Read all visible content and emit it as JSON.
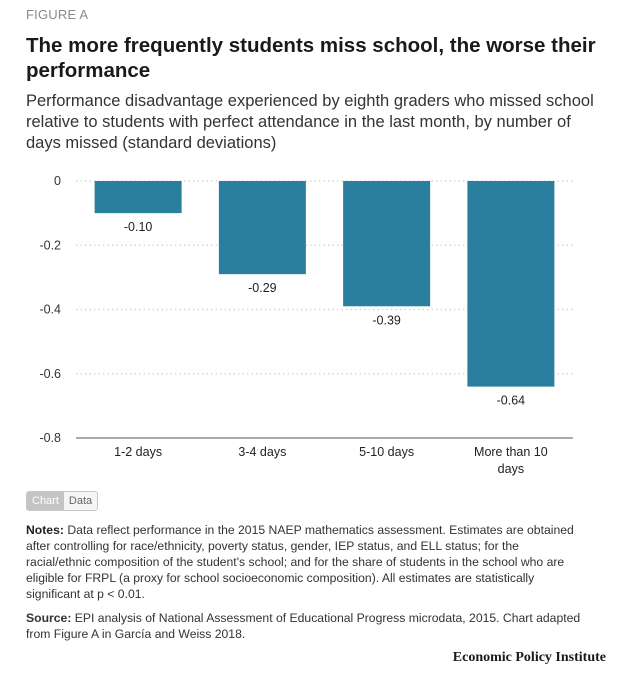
{
  "figure_label": "FIGURE A",
  "title": "The more frequently students miss school, the worse their performance",
  "subtitle": "Performance disadvantage experienced by eighth graders who missed school relative to students with perfect attendance in the last month, by number of days missed (standard deviations)",
  "colors": {
    "bar": "#2b7f9e",
    "grid": "#cfcfcf",
    "axis": "#555555"
  },
  "chart_data": {
    "type": "bar",
    "categories": [
      "1-2 days",
      "3-4 days",
      "5-10 days",
      "More than 10 days"
    ],
    "values": [
      -0.1,
      -0.29,
      -0.39,
      -0.64
    ],
    "data_labels": [
      "-0.10",
      "-0.29",
      "-0.39",
      "-0.64"
    ],
    "ylim": [
      -0.8,
      0
    ],
    "yticks": [
      0,
      -0.2,
      -0.4,
      -0.6,
      -0.8
    ],
    "ytick_labels": [
      "0",
      "-0.2",
      "-0.4",
      "-0.6",
      "-0.8"
    ],
    "grid": true,
    "legend": false
  },
  "toggle": {
    "chart_label": "Chart",
    "data_label": "Data"
  },
  "notes": {
    "label": "Notes:",
    "text": "Data reflect performance in the 2015 NAEP mathematics assessment. Estimates are obtained after controlling for race/ethnicity, poverty status, gender, IEP status, and ELL status; for the racial/ethnic composition of the student's school; and for the share of students in the school who are eligible for FRPL (a proxy for school socioeconomic composition). All estimates are statistically significant at p < 0.01."
  },
  "source": {
    "label": "Source:",
    "text": "EPI analysis of National Assessment of Educational Progress microdata, 2015. Chart adapted from Figure A in García and Weiss 2018."
  },
  "brand": "Economic Policy Institute"
}
